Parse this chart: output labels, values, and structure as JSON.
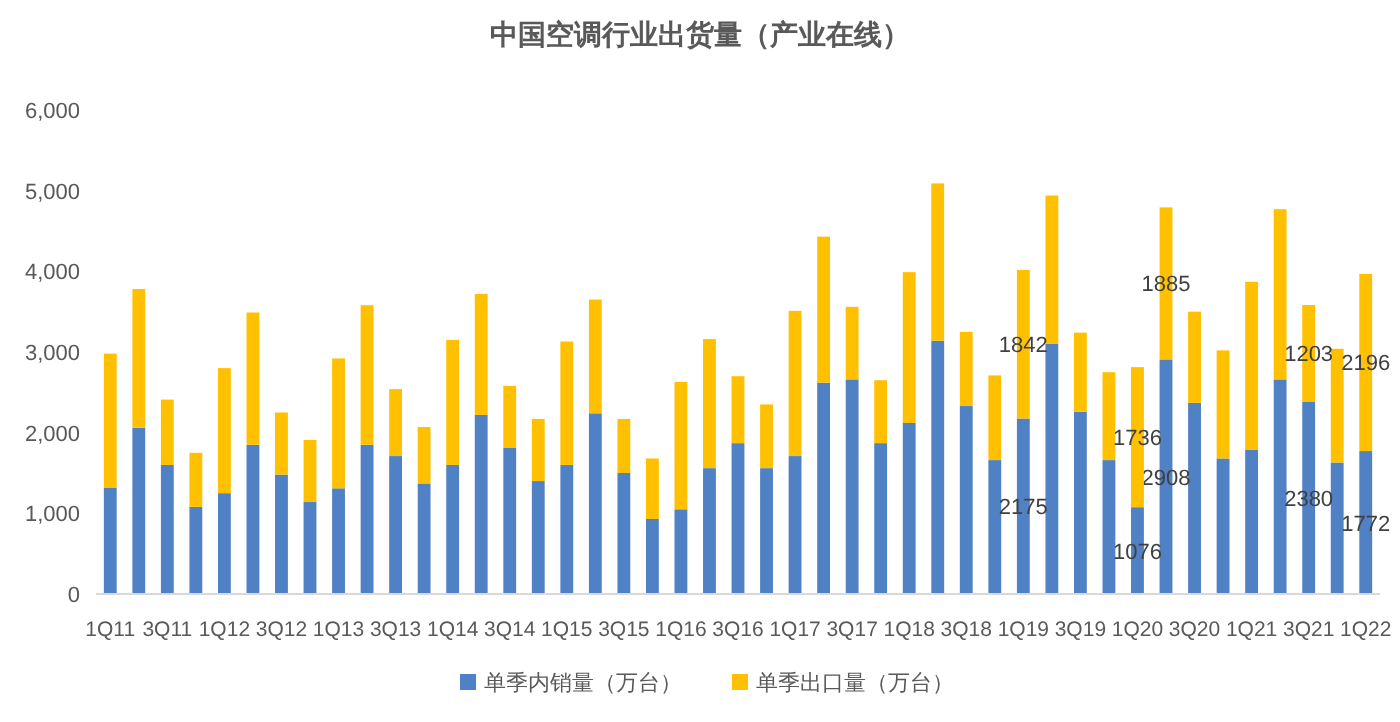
{
  "chart_data": {
    "type": "bar",
    "title": "中国空调行业出货量（产业在线）",
    "stacked": true,
    "legend": "bottom",
    "grid": false,
    "categories": [
      "1Q11",
      null,
      "3Q11",
      null,
      "1Q12",
      null,
      "3Q12",
      null,
      "1Q13",
      null,
      "3Q13",
      null,
      "1Q14",
      null,
      "3Q14",
      null,
      "1Q15",
      null,
      "3Q15",
      null,
      "1Q16",
      null,
      "3Q16",
      null,
      "1Q17",
      null,
      "3Q17",
      null,
      "1Q18",
      null,
      "3Q18",
      null,
      "1Q19",
      null,
      "3Q19",
      null,
      "1Q20",
      null,
      "3Q20",
      null,
      "1Q21",
      null,
      "3Q21",
      null,
      "1Q22"
    ],
    "ylim": [
      0,
      6000
    ],
    "yticks": [
      0,
      {
        "value": 1000,
        "label": "1,000"
      },
      {
        "value": 2000,
        "label": "2,000"
      },
      {
        "value": 3000,
        "label": "3,000"
      },
      {
        "value": 4000,
        "label": "4,000"
      },
      {
        "value": 5000,
        "label": "5,000"
      },
      {
        "value": 6000,
        "label": "6,000"
      }
    ],
    "series": [
      {
        "name": "单季内销量（万台）",
        "color": "#4f81c4",
        "values": [
          1320,
          2060,
          1600,
          1080,
          1250,
          1850,
          1480,
          1140,
          1310,
          1850,
          1710,
          1370,
          1600,
          2220,
          1810,
          1400,
          1600,
          2240,
          1500,
          930,
          1050,
          1560,
          1870,
          1560,
          1710,
          2620,
          2660,
          1870,
          2120,
          3140,
          2330,
          1660,
          2175,
          3100,
          2260,
          1660,
          1076,
          2908,
          2370,
          1680,
          1790,
          2660,
          2380,
          1630,
          1772
        ],
        "value_labels": [
          null,
          null,
          null,
          null,
          null,
          null,
          null,
          null,
          null,
          null,
          null,
          null,
          null,
          null,
          null,
          null,
          null,
          null,
          null,
          null,
          null,
          null,
          null,
          null,
          null,
          null,
          null,
          null,
          null,
          null,
          null,
          null,
          "2175",
          null,
          null,
          null,
          "1076",
          "2908",
          null,
          null,
          null,
          null,
          "2380",
          null,
          "1772"
        ]
      },
      {
        "name": "单季出口量（万台）",
        "color": "#ffc000",
        "values": [
          1660,
          1720,
          810,
          670,
          1550,
          1640,
          770,
          770,
          1610,
          1730,
          830,
          700,
          1550,
          1500,
          770,
          770,
          1530,
          1410,
          670,
          750,
          1580,
          1600,
          830,
          790,
          1800,
          1810,
          900,
          780,
          1870,
          1950,
          920,
          1050,
          1842,
          1840,
          980,
          1090,
          1736,
          1885,
          1130,
          1340,
          2080,
          2110,
          1203,
          1410,
          2196
        ],
        "value_labels": [
          null,
          null,
          null,
          null,
          null,
          null,
          null,
          null,
          null,
          null,
          null,
          null,
          null,
          null,
          null,
          null,
          null,
          null,
          null,
          null,
          null,
          null,
          null,
          null,
          null,
          null,
          null,
          null,
          null,
          null,
          null,
          null,
          "1842",
          null,
          null,
          null,
          "1736",
          "1885",
          null,
          null,
          null,
          null,
          "1203",
          null,
          "2196"
        ]
      }
    ]
  }
}
